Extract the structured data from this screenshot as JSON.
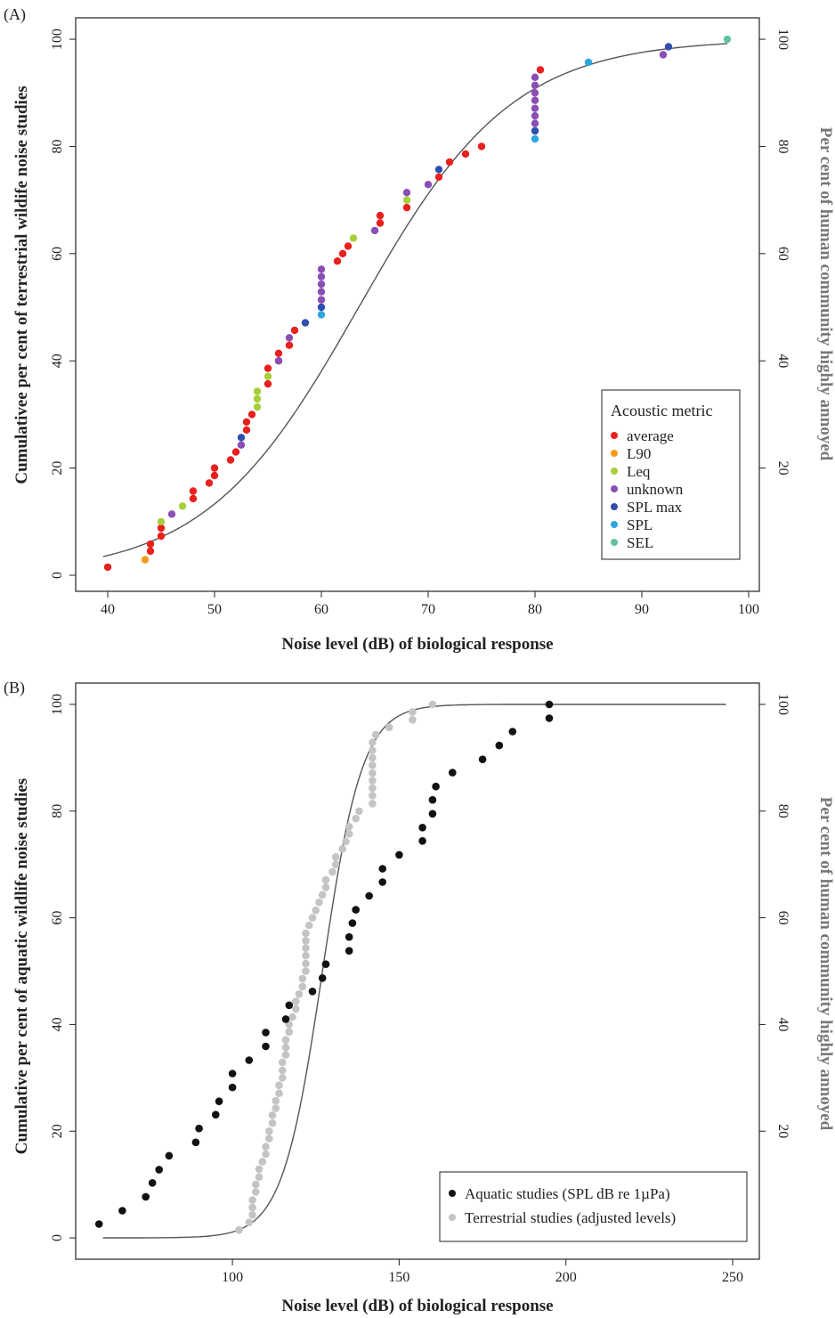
{
  "chart_data": [
    {
      "panel": "(A)",
      "type": "scatter",
      "xlabel": "Noise level (dB) of biological response",
      "ylabel": "Cumulativee per cent of terrestrial wildife noise studies",
      "ylabel_right": "Per cent of human community highly annoyed",
      "xlim": [
        37,
        101
      ],
      "ylim": [
        -3,
        104
      ],
      "xticks": [
        40,
        50,
        60,
        70,
        80,
        90,
        100
      ],
      "yticks": [
        0,
        20,
        40,
        60,
        80,
        100
      ],
      "yticks_right": [
        20,
        40,
        60,
        80,
        100
      ],
      "legend": {
        "title": "Acoustic metric",
        "position": "bottom-right",
        "entries": [
          {
            "name": "average",
            "color": "#e8201e"
          },
          {
            "name": "L90",
            "color": "#f39c1a"
          },
          {
            "name": "Leq",
            "color": "#a6cf3a"
          },
          {
            "name": "unknown",
            "color": "#8a4fb3"
          },
          {
            "name": "SPL max",
            "color": "#2f4fae"
          },
          {
            "name": "SPL",
            "color": "#2ea6e0"
          },
          {
            "name": "SEL",
            "color": "#5fc39a"
          }
        ]
      },
      "series": [
        {
          "name": "average",
          "color": "#e8201e",
          "points": [
            [
              40,
              1.5
            ],
            [
              44,
              4.5
            ],
            [
              44,
              5.8
            ],
            [
              45,
              7.3
            ],
            [
              45,
              8.8
            ],
            [
              48,
              14.3
            ],
            [
              48,
              15.7
            ],
            [
              49.5,
              17.2
            ],
            [
              50,
              18.6
            ],
            [
              50,
              20
            ],
            [
              51.5,
              21.5
            ],
            [
              52,
              23
            ],
            [
              53,
              27.1
            ],
            [
              53,
              28.6
            ],
            [
              53.5,
              30
            ],
            [
              55,
              35.7
            ],
            [
              55,
              38.6
            ],
            [
              56,
              40
            ],
            [
              56,
              41.4
            ],
            [
              57,
              42.9
            ],
            [
              57.5,
              45.7
            ],
            [
              61.5,
              58.6
            ],
            [
              62,
              60
            ],
            [
              62.5,
              61.4
            ],
            [
              65.5,
              65.7
            ],
            [
              65.5,
              67.1
            ],
            [
              68,
              68.6
            ],
            [
              71,
              74.3
            ],
            [
              72,
              77.1
            ],
            [
              73.5,
              78.6
            ],
            [
              75,
              80
            ],
            [
              80.5,
              94.3
            ]
          ]
        },
        {
          "name": "L90",
          "color": "#f39c1a",
          "points": [
            [
              43.5,
              2.9
            ]
          ]
        },
        {
          "name": "Leq",
          "color": "#a6cf3a",
          "points": [
            [
              45,
              10
            ],
            [
              47,
              12.9
            ],
            [
              54,
              31.4
            ],
            [
              54,
              32.9
            ],
            [
              54,
              34.3
            ],
            [
              55,
              37.1
            ],
            [
              63,
              62.9
            ],
            [
              68,
              70
            ]
          ]
        },
        {
          "name": "unknown",
          "color": "#8a4fb3",
          "points": [
            [
              46,
              11.4
            ],
            [
              52.5,
              24.3
            ],
            [
              56,
              40
            ],
            [
              57,
              44.3
            ],
            [
              60,
              51.4
            ],
            [
              60,
              52.9
            ],
            [
              60,
              54.3
            ],
            [
              60,
              55.7
            ],
            [
              60,
              57.1
            ],
            [
              65,
              64.3
            ],
            [
              68,
              71.4
            ],
            [
              70,
              72.9
            ],
            [
              80,
              84.3
            ],
            [
              80,
              85.7
            ],
            [
              80,
              87.1
            ],
            [
              80,
              88.6
            ],
            [
              80,
              90
            ],
            [
              80,
              91.4
            ],
            [
              80,
              92.9
            ],
            [
              92,
              97.1
            ]
          ]
        },
        {
          "name": "SPL max",
          "color": "#2f4fae",
          "points": [
            [
              52.5,
              25.7
            ],
            [
              58.5,
              47.1
            ],
            [
              60,
              50
            ],
            [
              71,
              75.7
            ],
            [
              80,
              82.9
            ],
            [
              92.5,
              98.6
            ]
          ]
        },
        {
          "name": "SPL",
          "color": "#2ea6e0",
          "points": [
            [
              60,
              48.6
            ],
            [
              80,
              81.4
            ],
            [
              85,
              95.7
            ]
          ]
        },
        {
          "name": "SEL",
          "color": "#5fc39a",
          "points": [
            [
              98,
              100
            ]
          ]
        }
      ],
      "curve": {
        "type": "logistic",
        "midpoint": 63.5,
        "scale": 7.2
      }
    },
    {
      "panel": "(B)",
      "type": "scatter",
      "xlabel": "Noise level (dB) of biological response",
      "ylabel": "Cumulative per cent of aquatic wildlife noise studies",
      "ylabel_right": "Per cent of human community highly annoyed",
      "xlim": [
        53,
        258
      ],
      "ylim": [
        -4,
        104
      ],
      "xticks": [
        100,
        150,
        200,
        250
      ],
      "yticks": [
        0,
        20,
        40,
        60,
        80,
        100
      ],
      "yticks_right": [
        20,
        40,
        60,
        80,
        100
      ],
      "legend": {
        "position": "bottom-right",
        "entries": [
          {
            "name": "Aquatic studies (SPL dB re 1µPa)",
            "color": "#111111"
          },
          {
            "name": "Terrestrial studies (adjusted levels)",
            "color": "#c4c4c4"
          }
        ]
      },
      "series": [
        {
          "name": "Aquatic studies (SPL dB re 1µPa)",
          "color": "#111111",
          "points": [
            [
              60,
              2.6
            ],
            [
              67,
              5.1
            ],
            [
              74,
              7.7
            ],
            [
              76,
              10.3
            ],
            [
              78,
              12.8
            ],
            [
              81,
              15.4
            ],
            [
              89,
              17.9
            ],
            [
              90,
              20.5
            ],
            [
              95,
              23.1
            ],
            [
              96,
              25.6
            ],
            [
              100,
              28.2
            ],
            [
              100,
              30.8
            ],
            [
              105,
              33.3
            ],
            [
              110,
              35.9
            ],
            [
              110,
              38.5
            ],
            [
              116,
              41
            ],
            [
              117,
              43.6
            ],
            [
              124,
              46.2
            ],
            [
              127,
              48.7
            ],
            [
              128,
              51.3
            ],
            [
              135,
              53.8
            ],
            [
              135,
              56.4
            ],
            [
              136,
              59
            ],
            [
              137,
              61.5
            ],
            [
              141,
              64.1
            ],
            [
              145,
              66.7
            ],
            [
              145,
              69.2
            ],
            [
              150,
              71.8
            ],
            [
              157,
              74.4
            ],
            [
              157,
              76.9
            ],
            [
              160,
              79.5
            ],
            [
              160,
              82.1
            ],
            [
              161,
              84.6
            ],
            [
              166,
              87.2
            ],
            [
              175,
              89.7
            ],
            [
              180,
              92.3
            ],
            [
              184,
              94.9
            ],
            [
              195,
              97.4
            ],
            [
              195,
              100
            ]
          ]
        },
        {
          "name": "Terrestrial studies (adjusted levels)",
          "color": "#c4c4c4",
          "points": [
            [
              102,
              1.5
            ],
            [
              105,
              2.9
            ],
            [
              106,
              4.3
            ],
            [
              106,
              5.7
            ],
            [
              106,
              7.1
            ],
            [
              107,
              8.6
            ],
            [
              107,
              10
            ],
            [
              108,
              11.4
            ],
            [
              108,
              12.9
            ],
            [
              109,
              14.3
            ],
            [
              110,
              15.7
            ],
            [
              110,
              17.1
            ],
            [
              111,
              18.6
            ],
            [
              111,
              20
            ],
            [
              112,
              21.5
            ],
            [
              112,
              23
            ],
            [
              113,
              24.3
            ],
            [
              113,
              25.7
            ],
            [
              114,
              27.1
            ],
            [
              114,
              28.6
            ],
            [
              115,
              30
            ],
            [
              115,
              31.4
            ],
            [
              115,
              32.9
            ],
            [
              116,
              34.3
            ],
            [
              116,
              35.7
            ],
            [
              116,
              37.1
            ],
            [
              117,
              38.6
            ],
            [
              117,
              40
            ],
            [
              118,
              41.4
            ],
            [
              119,
              42.9
            ],
            [
              119,
              44.3
            ],
            [
              120,
              45.7
            ],
            [
              121,
              47.1
            ],
            [
              121,
              48.6
            ],
            [
              122,
              50
            ],
            [
              122,
              51.4
            ],
            [
              122,
              52.9
            ],
            [
              122,
              54.3
            ],
            [
              122,
              55.7
            ],
            [
              122,
              57.1
            ],
            [
              123,
              58.6
            ],
            [
              124,
              60
            ],
            [
              125,
              61.4
            ],
            [
              126,
              62.9
            ],
            [
              127,
              64.3
            ],
            [
              128,
              65.7
            ],
            [
              128,
              67.1
            ],
            [
              130,
              68.6
            ],
            [
              131,
              70
            ],
            [
              131,
              71.4
            ],
            [
              133,
              72.9
            ],
            [
              134,
              74.3
            ],
            [
              135,
              75.7
            ],
            [
              135,
              77.1
            ],
            [
              137,
              78.6
            ],
            [
              138,
              80
            ],
            [
              142,
              81.4
            ],
            [
              142,
              82.9
            ],
            [
              142,
              84.3
            ],
            [
              142,
              85.7
            ],
            [
              142,
              87.1
            ],
            [
              142,
              88.6
            ],
            [
              142,
              90
            ],
            [
              142,
              91.4
            ],
            [
              142,
              92.9
            ],
            [
              143,
              94.3
            ],
            [
              147,
              95.7
            ],
            [
              154,
              97.1
            ],
            [
              154,
              98.6
            ],
            [
              160,
              100
            ]
          ]
        }
      ],
      "curve": {
        "type": "logistic",
        "midpoint": 127,
        "scale": 6
      }
    }
  ]
}
